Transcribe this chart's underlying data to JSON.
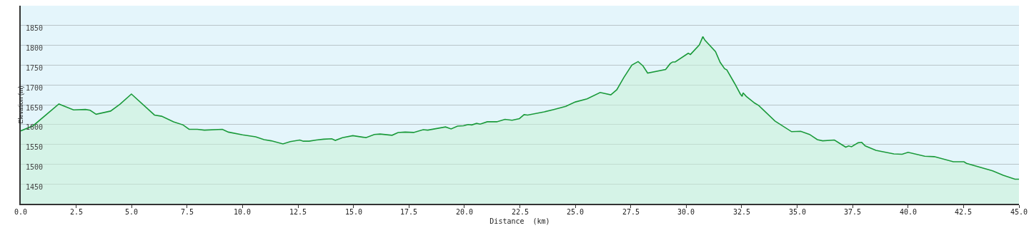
{
  "chart_data": {
    "type": "area",
    "xlabel": "Distance  (km)",
    "ylabel": "Elevation (m)",
    "x": [
      0,
      0.56,
      1.72,
      2.38,
      2.92,
      3.13,
      3.4,
      4.05,
      4.47,
      4.99,
      6.03,
      6.35,
      6.89,
      7.32,
      7.59,
      7.96,
      8.28,
      9.09,
      9.36,
      10.0,
      10.59,
      10.97,
      11.29,
      11.82,
      12.15,
      12.58,
      12.74,
      13.0,
      13.33,
      13.65,
      14.02,
      14.18,
      14.5,
      14.97,
      15.56,
      15.94,
      16.2,
      16.74,
      17.01,
      17.33,
      17.71,
      18.14,
      18.35,
      19.15,
      19.4,
      19.69,
      19.96,
      20.17,
      20.33,
      20.55,
      20.71,
      21.03,
      21.46,
      21.83,
      22.15,
      22.48,
      22.69,
      22.85,
      23.6,
      24.03,
      24.57,
      25.0,
      25.53,
      26.12,
      26.6,
      26.87,
      27.19,
      27.55,
      27.83,
      28.05,
      28.26,
      29.07,
      29.28,
      29.39,
      29.5,
      30.09,
      30.19,
      30.59,
      30.75,
      30.84,
      31.32,
      31.53,
      31.73,
      31.83,
      32.18,
      32.44,
      32.52,
      32.56,
      32.71,
      33.09,
      33.27,
      34.0,
      34.75,
      35.16,
      35.56,
      35.91,
      36.15,
      36.68,
      37.19,
      37.32,
      37.45,
      37.75,
      37.91,
      38.07,
      38.55,
      39.36,
      39.73,
      40.0,
      40.75,
      41.18,
      42.04,
      42.52,
      42.63,
      43.81,
      44.29,
      44.82,
      45.0
    ],
    "series": [
      {
        "color": "#1a9a3a",
        "values": [
          1584,
          1597,
          1652,
          1637,
          1638,
          1636,
          1626,
          1634,
          1651,
          1677,
          1624,
          1621,
          1607,
          1599,
          1588,
          1588,
          1586,
          1588,
          1581,
          1574,
          1569,
          1562,
          1559,
          1551,
          1557,
          1561,
          1558,
          1558,
          1561,
          1563,
          1564,
          1560,
          1567,
          1572,
          1567,
          1575,
          1576,
          1573,
          1580,
          1581,
          1580,
          1587,
          1586,
          1594,
          1589,
          1596,
          1597,
          1600,
          1599,
          1603,
          1601,
          1607,
          1607,
          1613,
          1611,
          1615,
          1625,
          1624,
          1632,
          1638,
          1646,
          1657,
          1665,
          1681,
          1675,
          1688,
          1719,
          1750,
          1759,
          1748,
          1730,
          1739,
          1754,
          1758,
          1758,
          1780,
          1777,
          1801,
          1822,
          1813,
          1784,
          1757,
          1741,
          1738,
          1704,
          1677,
          1671,
          1680,
          1671,
          1654,
          1648,
          1609,
          1582,
          1583,
          1575,
          1562,
          1559,
          1561,
          1543,
          1546,
          1544,
          1554,
          1555,
          1546,
          1535,
          1526,
          1525,
          1530,
          1520,
          1519,
          1506,
          1506,
          1502,
          1483,
          1472,
          1462,
          1462
        ]
      }
    ],
    "xlim": [
      0,
      45
    ],
    "ylim": [
      1400,
      1900
    ],
    "xticks": [
      {
        "value": 0,
        "label": "0.0"
      },
      2.5,
      {
        "value": 5,
        "label": "5.0"
      },
      7.5,
      {
        "value": 10,
        "label": "10.0"
      },
      12.5,
      {
        "value": 15,
        "label": "15.0"
      },
      17.5,
      {
        "value": 20,
        "label": "20.0"
      },
      22.5,
      {
        "value": 25,
        "label": "25.0"
      },
      27.5,
      {
        "value": 30,
        "label": "30.0"
      },
      32.5,
      {
        "value": 35,
        "label": "35.0"
      },
      37.5,
      {
        "value": 40,
        "label": "40.0"
      },
      42.5,
      {
        "value": 45,
        "label": "45.0"
      }
    ],
    "yticks": [
      1450,
      1500,
      1550,
      1600,
      1650,
      1700,
      1750,
      1800,
      1850
    ],
    "grid": "y",
    "marker": "none",
    "line_style": "solid"
  }
}
